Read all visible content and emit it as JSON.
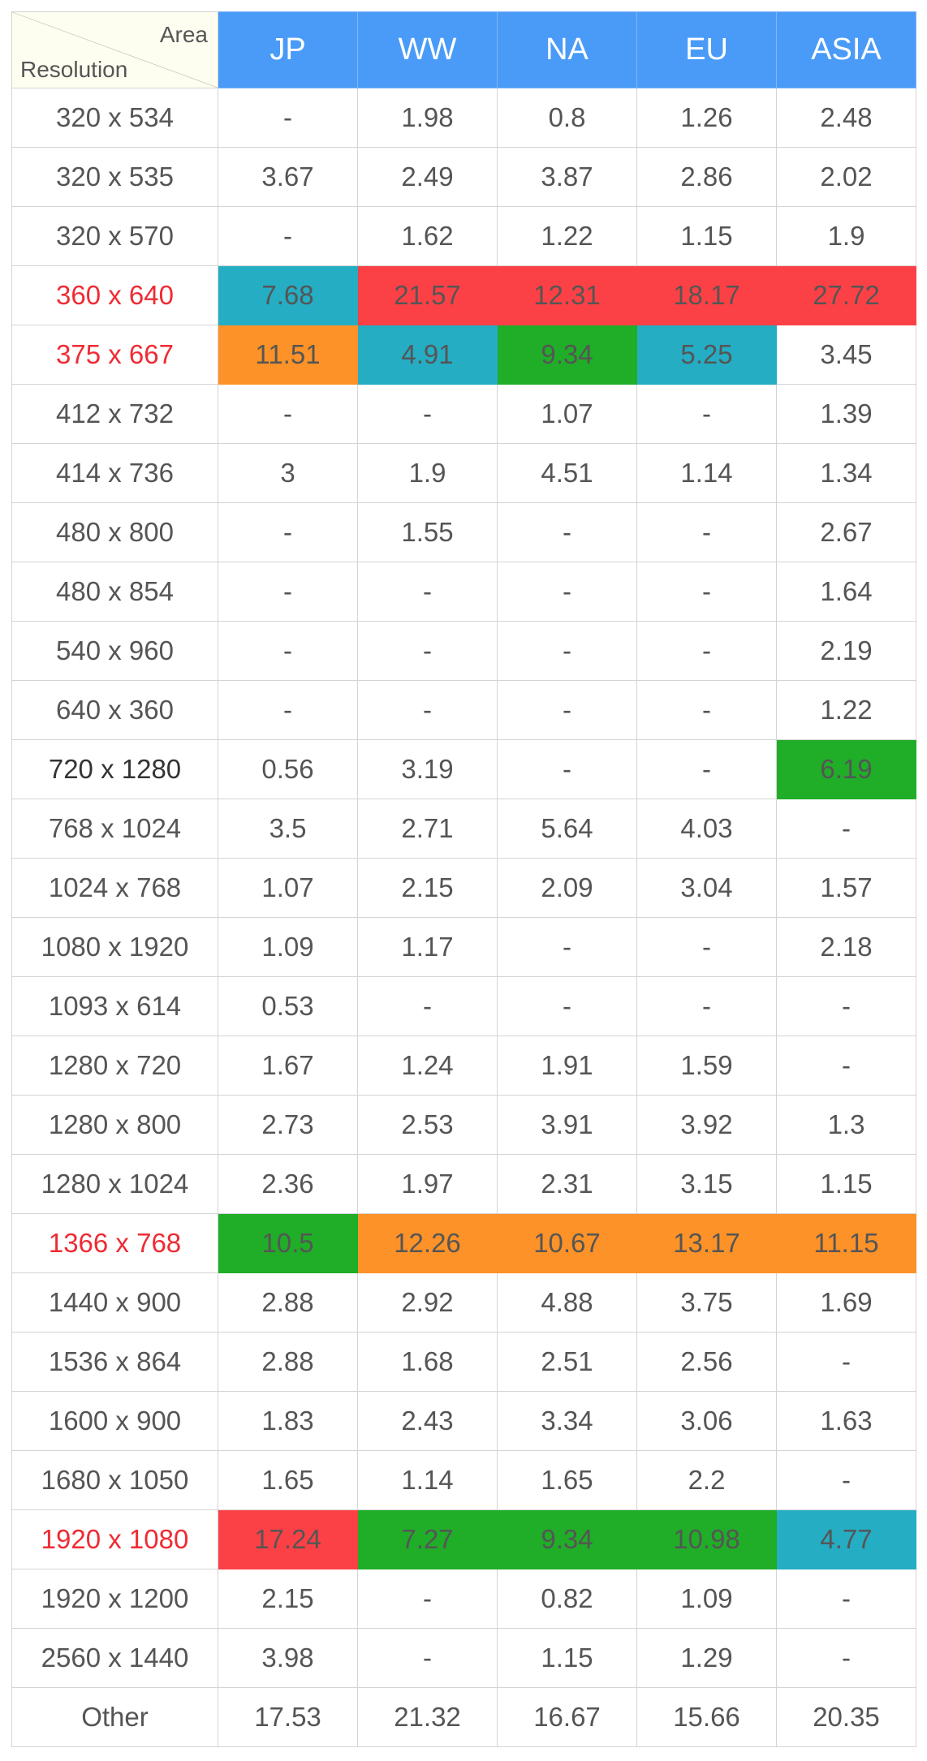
{
  "chart_data": {
    "type": "table",
    "corner": {
      "top_right": "Area",
      "bottom_left": "Resolution"
    },
    "columns": [
      "JP",
      "WW",
      "NA",
      "EU",
      "ASIA"
    ],
    "colors": {
      "header": "#4a9bf7",
      "red": "#fc4146",
      "teal": "#25adc4",
      "orange": "#fd9228",
      "green": "#20ad28",
      "emphasis_text_red": "#ef2b34",
      "emphasis_text_dark": "#333333"
    },
    "rows": [
      {
        "resolution": "320 x 534",
        "values": [
          "-",
          "1.98",
          "0.8",
          "1.26",
          "2.48"
        ],
        "hl": [
          null,
          null,
          null,
          null,
          null
        ],
        "emph": null
      },
      {
        "resolution": "320 x 535",
        "values": [
          "3.67",
          "2.49",
          "3.87",
          "2.86",
          "2.02"
        ],
        "hl": [
          null,
          null,
          null,
          null,
          null
        ],
        "emph": null
      },
      {
        "resolution": "320 x 570",
        "values": [
          "-",
          "1.62",
          "1.22",
          "1.15",
          "1.9"
        ],
        "hl": [
          null,
          null,
          null,
          null,
          null
        ],
        "emph": null
      },
      {
        "resolution": "360 x 640",
        "values": [
          "7.68",
          "21.57",
          "12.31",
          "18.17",
          "27.72"
        ],
        "hl": [
          "teal",
          "red",
          "red",
          "red",
          "red"
        ],
        "emph": "red"
      },
      {
        "resolution": "375 x 667",
        "values": [
          "11.51",
          "4.91",
          "9.34",
          "5.25",
          "3.45"
        ],
        "hl": [
          "orange",
          "teal",
          "green",
          "teal",
          null
        ],
        "emph": "red"
      },
      {
        "resolution": "412 x 732",
        "values": [
          "-",
          "-",
          "1.07",
          "-",
          "1.39"
        ],
        "hl": [
          null,
          null,
          null,
          null,
          null
        ],
        "emph": null
      },
      {
        "resolution": "414 x 736",
        "values": [
          "3",
          "1.9",
          "4.51",
          "1.14",
          "1.34"
        ],
        "hl": [
          null,
          null,
          null,
          null,
          null
        ],
        "emph": null
      },
      {
        "resolution": "480 x 800",
        "values": [
          "-",
          "1.55",
          "-",
          "-",
          "2.67"
        ],
        "hl": [
          null,
          null,
          null,
          null,
          null
        ],
        "emph": null
      },
      {
        "resolution": "480 x 854",
        "values": [
          "-",
          "-",
          "-",
          "-",
          "1.64"
        ],
        "hl": [
          null,
          null,
          null,
          null,
          null
        ],
        "emph": null
      },
      {
        "resolution": "540 x 960",
        "values": [
          "-",
          "-",
          "-",
          "-",
          "2.19"
        ],
        "hl": [
          null,
          null,
          null,
          null,
          null
        ],
        "emph": null
      },
      {
        "resolution": "640 x 360",
        "values": [
          "-",
          "-",
          "-",
          "-",
          "1.22"
        ],
        "hl": [
          null,
          null,
          null,
          null,
          null
        ],
        "emph": null
      },
      {
        "resolution": "720 x 1280",
        "values": [
          "0.56",
          "3.19",
          "-",
          "-",
          "6.19"
        ],
        "hl": [
          null,
          null,
          null,
          null,
          "green"
        ],
        "emph": "dark"
      },
      {
        "resolution": "768 x 1024",
        "values": [
          "3.5",
          "2.71",
          "5.64",
          "4.03",
          "-"
        ],
        "hl": [
          null,
          null,
          null,
          null,
          null
        ],
        "emph": null
      },
      {
        "resolution": "1024 x 768",
        "values": [
          "1.07",
          "2.15",
          "2.09",
          "3.04",
          "1.57"
        ],
        "hl": [
          null,
          null,
          null,
          null,
          null
        ],
        "emph": null
      },
      {
        "resolution": "1080 x 1920",
        "values": [
          "1.09",
          "1.17",
          "-",
          "-",
          "2.18"
        ],
        "hl": [
          null,
          null,
          null,
          null,
          null
        ],
        "emph": null
      },
      {
        "resolution": "1093 x 614",
        "values": [
          "0.53",
          "-",
          "-",
          "-",
          "-"
        ],
        "hl": [
          null,
          null,
          null,
          null,
          null
        ],
        "emph": null
      },
      {
        "resolution": "1280 x 720",
        "values": [
          "1.67",
          "1.24",
          "1.91",
          "1.59",
          "-"
        ],
        "hl": [
          null,
          null,
          null,
          null,
          null
        ],
        "emph": null
      },
      {
        "resolution": "1280 x 800",
        "values": [
          "2.73",
          "2.53",
          "3.91",
          "3.92",
          "1.3"
        ],
        "hl": [
          null,
          null,
          null,
          null,
          null
        ],
        "emph": null
      },
      {
        "resolution": "1280 x 1024",
        "values": [
          "2.36",
          "1.97",
          "2.31",
          "3.15",
          "1.15"
        ],
        "hl": [
          null,
          null,
          null,
          null,
          null
        ],
        "emph": null
      },
      {
        "resolution": "1366 x 768",
        "values": [
          "10.5",
          "12.26",
          "10.67",
          "13.17",
          "11.15"
        ],
        "hl": [
          "green",
          "orange",
          "orange",
          "orange",
          "orange"
        ],
        "emph": "red"
      },
      {
        "resolution": "1440 x 900",
        "values": [
          "2.88",
          "2.92",
          "4.88",
          "3.75",
          "1.69"
        ],
        "hl": [
          null,
          null,
          null,
          null,
          null
        ],
        "emph": null
      },
      {
        "resolution": "1536 x 864",
        "values": [
          "2.88",
          "1.68",
          "2.51",
          "2.56",
          "-"
        ],
        "hl": [
          null,
          null,
          null,
          null,
          null
        ],
        "emph": null
      },
      {
        "resolution": "1600 x 900",
        "values": [
          "1.83",
          "2.43",
          "3.34",
          "3.06",
          "1.63"
        ],
        "hl": [
          null,
          null,
          null,
          null,
          null
        ],
        "emph": null
      },
      {
        "resolution": "1680 x 1050",
        "values": [
          "1.65",
          "1.14",
          "1.65",
          "2.2",
          "-"
        ],
        "hl": [
          null,
          null,
          null,
          null,
          null
        ],
        "emph": null
      },
      {
        "resolution": "1920 x 1080",
        "values": [
          "17.24",
          "7.27",
          "9.34",
          "10.98",
          "4.77"
        ],
        "hl": [
          "red",
          "green",
          "green",
          "green",
          "teal"
        ],
        "emph": "red"
      },
      {
        "resolution": "1920 x 1200",
        "values": [
          "2.15",
          "-",
          "0.82",
          "1.09",
          "-"
        ],
        "hl": [
          null,
          null,
          null,
          null,
          null
        ],
        "emph": null
      },
      {
        "resolution": "2560 x 1440",
        "values": [
          "3.98",
          "-",
          "1.15",
          "1.29",
          "-"
        ],
        "hl": [
          null,
          null,
          null,
          null,
          null
        ],
        "emph": null
      },
      {
        "resolution": "Other",
        "values": [
          "17.53",
          "21.32",
          "16.67",
          "15.66",
          "20.35"
        ],
        "hl": [
          null,
          null,
          null,
          null,
          null
        ],
        "emph": null
      }
    ]
  }
}
